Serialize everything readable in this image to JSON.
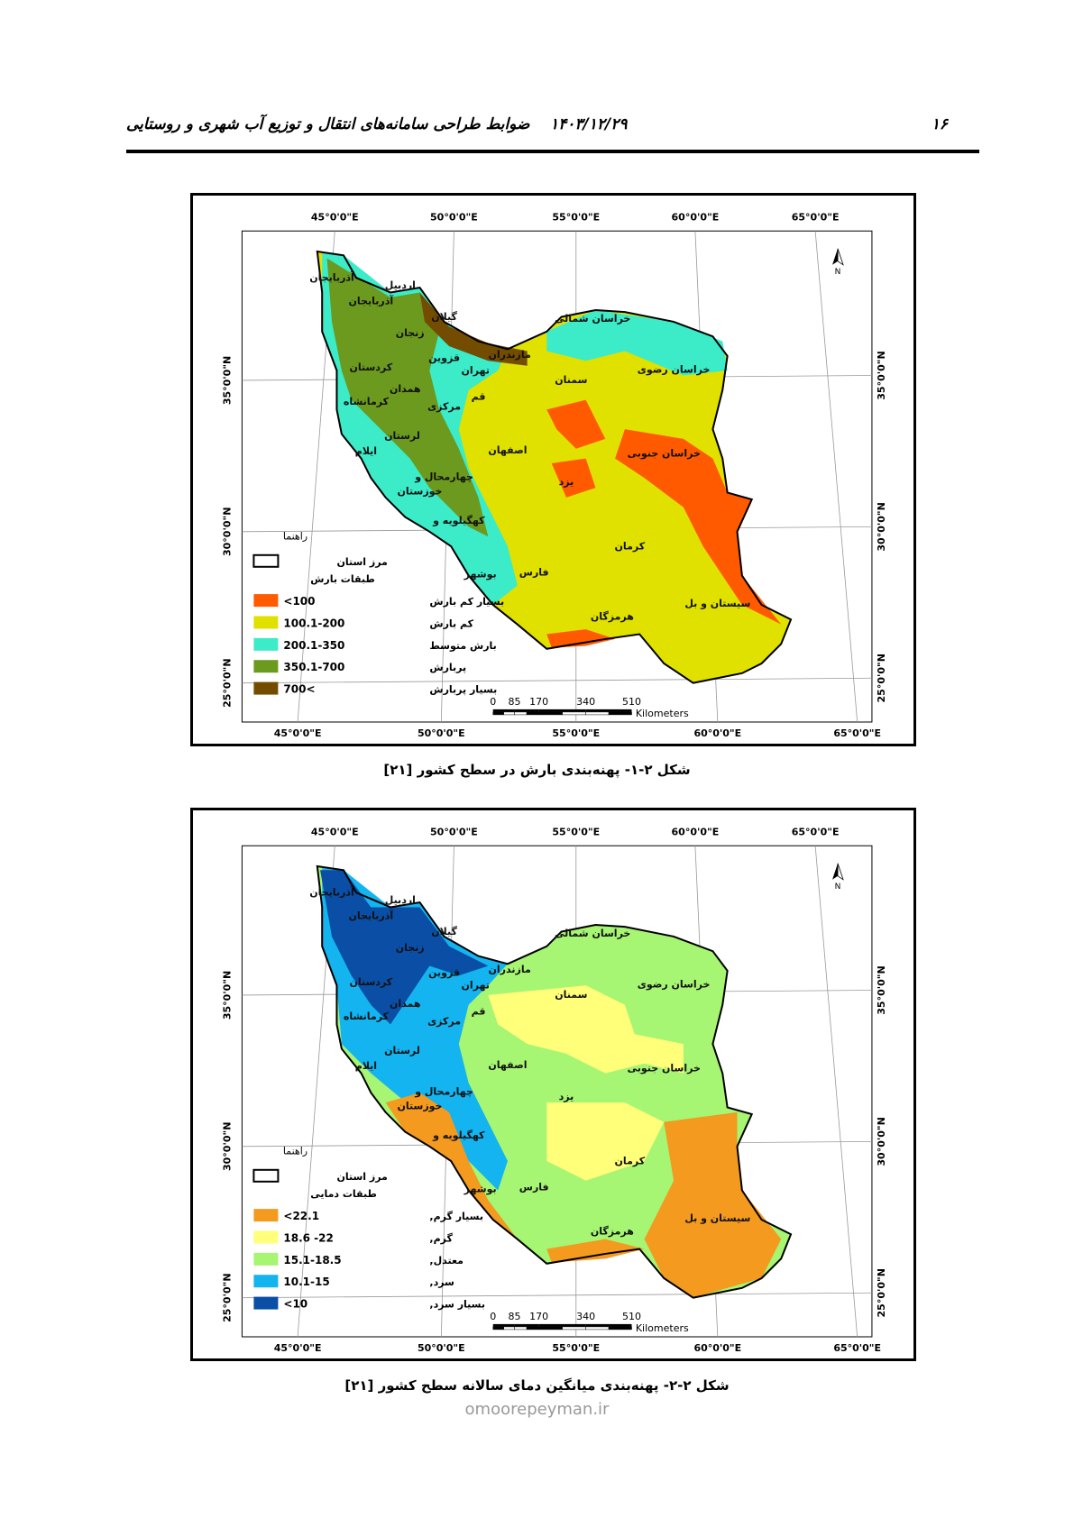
{
  "header": {
    "page_number": "۱۶",
    "date": "۱۴۰۳/۱۲/۲۹",
    "title": "ضوابط طراحی سامانه‌های انتقال و توزیع آب شهری و روستایی"
  },
  "figures": [
    {
      "caption": "شکل ۲-۱- پهنه‌بندی بارش در سطح کشور [۲۱]",
      "map": {
        "longitude_labels": [
          "45°0'0\"E",
          "50°0'0\"E",
          "55°0'0\"E",
          "60°0'0\"E",
          "65°0'0\"E"
        ],
        "latitude_labels": [
          "35°0'0\"N",
          "30°0'0\"N",
          "25°0'0\"N"
        ],
        "north": "N",
        "legend": {
          "title": "راهنما",
          "border": "مرز استان",
          "class_title": "طبقات بارش",
          "items": [
            {
              "range": "<100",
              "label": "بسیار کم بارش",
              "color": "#ff5a00"
            },
            {
              "range": "100.1-200",
              "label": "کم بارش",
              "color": "#e1e100"
            },
            {
              "range": "200.1-350",
              "label": "بارش متوسط",
              "color": "#3cebc8"
            },
            {
              "range": "350.1-700",
              "label": "پربارش",
              "color": "#6b9a1e"
            },
            {
              "range": "700<",
              "label": "بسیار پربارش",
              "color": "#734c00"
            }
          ]
        },
        "scale": {
          "ticks": [
            "0",
            "85",
            "170",
            "340",
            "510"
          ],
          "unit": "Kilometers"
        },
        "provinces": [
          "آذربایجان",
          "اردبیل",
          "آذربایجان",
          "گیلان",
          "زنجان",
          "مازندران",
          "قزوین",
          "کردستان",
          "تهران",
          "همدان",
          "سمنان",
          "خراسان شمالی",
          "خراسان رضوی",
          "قم",
          "مرکزی",
          "کرمانشاه",
          "لرستان",
          "ایلام",
          "اصفهان",
          "خراسان جنوبی",
          "چهارمحال و",
          "یزد",
          "خوزستان",
          "کهگیلویه و",
          "کرمان",
          "بوشهر",
          "فارس",
          "هرمزگان",
          "سیستان و بل"
        ]
      }
    },
    {
      "caption": "شکل ۲-۲- پهنه‌بندی میانگین دمای سالانه سطح کشور [۲۱]",
      "map": {
        "longitude_labels": [
          "45°0'0\"E",
          "50°0'0\"E",
          "55°0'0\"E",
          "60°0'0\"E",
          "65°0'0\"E"
        ],
        "latitude_labels": [
          "35°0'0\"N",
          "30°0'0\"N",
          "25°0'0\"N"
        ],
        "north": "N",
        "legend": {
          "title": "راهنما",
          "border": "مرز استان",
          "class_title": "طبقات دمایی",
          "items": [
            {
              "range": "<22.1",
              "label": "بسیار گرم,",
              "color": "#f39a1f"
            },
            {
              "range": "18.6 -22",
              "label": "گرم,",
              "color": "#ffff7a"
            },
            {
              "range": "15.1-18.5",
              "label": "معتدل,",
              "color": "#a6f573"
            },
            {
              "range": "10.1-15",
              "label": "سرد,",
              "color": "#14b4f0"
            },
            {
              "range": "<10",
              "label": "بسیار سرد,",
              "color": "#0a4ea6"
            }
          ]
        },
        "scale": {
          "ticks": [
            "0",
            "85",
            "170",
            "340",
            "510"
          ],
          "unit": "Kilometers"
        },
        "provinces": [
          "آذربایجان",
          "اردبیل",
          "آذربایجان",
          "گیلان",
          "زنجان",
          "مازندران",
          "قزوین",
          "کردستان",
          "تهران",
          "همدان",
          "سمنان",
          "خراسان شمالی",
          "خراسان رضوی",
          "قم",
          "مرکزی",
          "کرمانشاه",
          "لرستان",
          "ایلام",
          "اصفهان",
          "خراسان جنوبی",
          "چهارمحال و",
          "یزد",
          "خوزستان",
          "کهگیلویه و",
          "کرمان",
          "بوشهر",
          "فارس",
          "هرمزگان",
          "سیستان و بل"
        ]
      }
    }
  ],
  "watermark": "omoorepeyman.ir"
}
